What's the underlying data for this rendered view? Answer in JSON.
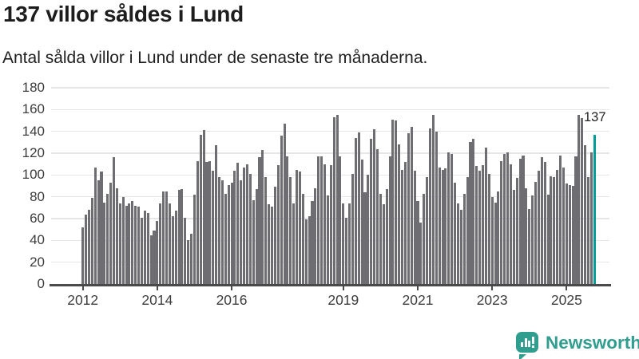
{
  "header": {
    "title": "137 villor såldes i Lund",
    "subtitle": "Antal sålda villor i Lund under de senaste tre månaderna."
  },
  "annotation": {
    "label": "137"
  },
  "footer": {
    "brand": "Newsworthy"
  },
  "colors": {
    "bar": "#6d6d72",
    "highlight": "#009c9c",
    "gridline": "#e6e6e6",
    "axis": "#4a4a4a",
    "logo_teal": "#2f9e8e",
    "text_dark": "#1d1d1d"
  },
  "chart_data": {
    "type": "bar",
    "title": "137 villor såldes i Lund",
    "subtitle": "Antal sålda villor i Lund under de senaste tre månaderna.",
    "frequency": "monthly",
    "x_start": "2012-01",
    "x_end": "2025-10",
    "ylim": [
      0,
      180
    ],
    "yticks": [
      0,
      20,
      40,
      60,
      80,
      100,
      120,
      140,
      160,
      180
    ],
    "xticks": [
      {
        "label": "2012",
        "month_index": 0
      },
      {
        "label": "2014",
        "month_index": 24
      },
      {
        "label": "2016",
        "month_index": 48
      },
      {
        "label": "2019",
        "month_index": 84
      },
      {
        "label": "2021",
        "month_index": 108
      },
      {
        "label": "2023",
        "month_index": 132
      },
      {
        "label": "2025",
        "month_index": 156
      }
    ],
    "grid": true,
    "legend": false,
    "highlight_last": true,
    "highlight_value": 137,
    "values": [
      52,
      64,
      68,
      79,
      107,
      95,
      103,
      75,
      83,
      93,
      116,
      88,
      74,
      80,
      72,
      74,
      76,
      72,
      71,
      61,
      67,
      65,
      45,
      49,
      58,
      74,
      85,
      85,
      74,
      62,
      67,
      86,
      87,
      61,
      40,
      46,
      82,
      113,
      137,
      141,
      112,
      113,
      104,
      127,
      98,
      95,
      83,
      91,
      93,
      104,
      111,
      95,
      107,
      110,
      101,
      77,
      87,
      116,
      123,
      98,
      73,
      71,
      89,
      109,
      136,
      147,
      117,
      98,
      74,
      105,
      103,
      83,
      59,
      62,
      76,
      88,
      117,
      117,
      110,
      81,
      109,
      153,
      155,
      117,
      74,
      61,
      74,
      101,
      134,
      139,
      114,
      84,
      100,
      133,
      142,
      124,
      83,
      73,
      87,
      117,
      151,
      150,
      128,
      105,
      112,
      138,
      144,
      104,
      76,
      56,
      83,
      98,
      143,
      155,
      140,
      107,
      105,
      106,
      121,
      119,
      93,
      74,
      68,
      83,
      98,
      130,
      133,
      108,
      104,
      109,
      125,
      101,
      80,
      75,
      85,
      113,
      119,
      121,
      110,
      86,
      97,
      115,
      118,
      88,
      69,
      81,
      94,
      104,
      116,
      112,
      82,
      99,
      98,
      105,
      118,
      107,
      92,
      91,
      90,
      117,
      155,
      152,
      127,
      98,
      121,
      137
    ]
  }
}
